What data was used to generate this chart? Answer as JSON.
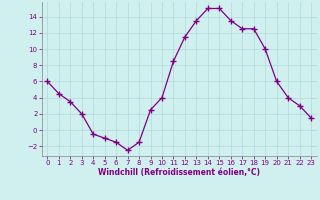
{
  "x": [
    0,
    1,
    2,
    3,
    4,
    5,
    6,
    7,
    8,
    9,
    10,
    11,
    12,
    13,
    14,
    15,
    16,
    17,
    18,
    19,
    20,
    21,
    22,
    23
  ],
  "y": [
    6,
    4.5,
    3.5,
    2,
    -0.5,
    -1,
    -1.5,
    -2.5,
    -1.5,
    2.5,
    4,
    8.5,
    11.5,
    13.5,
    15,
    15,
    13.5,
    12.5,
    12.5,
    10,
    6,
    4,
    3,
    1.5
  ],
  "line_color": "#800080",
  "marker": "+",
  "marker_size": 4.0,
  "bg_color": "#d0f0f0",
  "grid_color": "#b0d8d8",
  "xlabel": "Windchill (Refroidissement éolien,°C)",
  "xlabel_color": "#800080",
  "tick_color": "#800080",
  "ylim": [
    -3.2,
    15.8
  ],
  "xlim": [
    -0.5,
    23.5
  ],
  "yticks": [
    -2,
    0,
    2,
    4,
    6,
    8,
    10,
    12,
    14
  ],
  "xticks": [
    0,
    1,
    2,
    3,
    4,
    5,
    6,
    7,
    8,
    9,
    10,
    11,
    12,
    13,
    14,
    15,
    16,
    17,
    18,
    19,
    20,
    21,
    22,
    23
  ]
}
